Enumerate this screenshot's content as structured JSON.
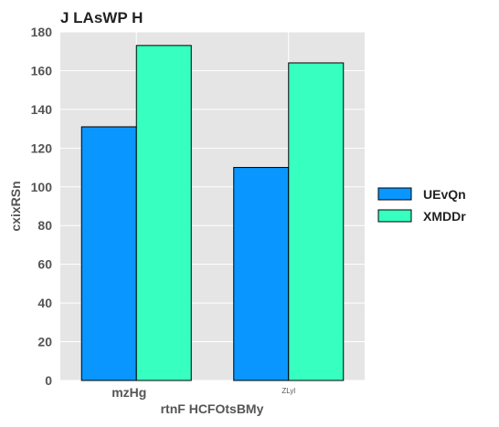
{
  "chart_data": {
    "type": "bar",
    "title": "J LAsWP H",
    "xlabel": "rtnF HCFOtsBMy",
    "ylabel": "cxixRSn",
    "categories": [
      "mzHg",
      "ZLyl"
    ],
    "series": [
      {
        "name": "UEvQn",
        "values": [
          131,
          110
        ],
        "color": "#0a96ff"
      },
      {
        "name": "XMDDr",
        "values": [
          173,
          164
        ],
        "color": "#36ffbf"
      }
    ],
    "ylim": [
      0,
      180
    ],
    "yticks": [
      0,
      20,
      40,
      60,
      80,
      100,
      120,
      140,
      160,
      180
    ],
    "grid": true,
    "legend": "right",
    "plot_background": "#e5e5e5",
    "grid_color": "#ffffff"
  }
}
